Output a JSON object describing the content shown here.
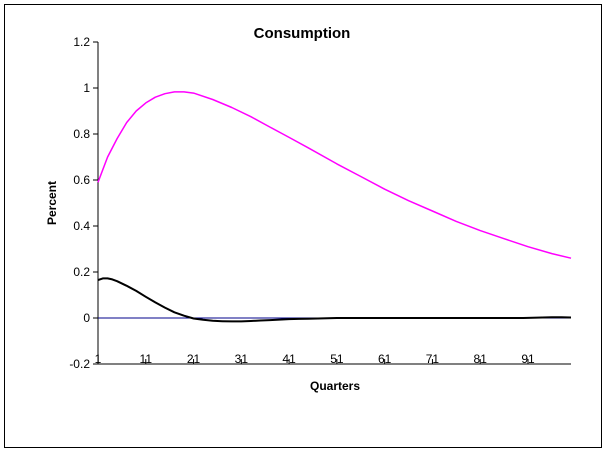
{
  "chart_data": {
    "type": "line",
    "title": "Consumption",
    "xlabel": "Quarters",
    "ylabel": "Percent",
    "xlim": [
      1,
      100
    ],
    "ylim": [
      -0.2,
      1.2
    ],
    "y_ticks": [
      "-0.2",
      "0",
      "0.2",
      "0.4",
      "0.6",
      "0.8",
      "1",
      "1.2"
    ],
    "y_tick_values": [
      -0.2,
      0,
      0.2,
      0.4,
      0.6,
      0.8,
      1,
      1.2
    ],
    "x_ticks": [
      "1",
      "11",
      "21",
      "31",
      "41",
      "51",
      "61",
      "71",
      "81",
      "91"
    ],
    "x_tick_values": [
      1,
      11,
      21,
      31,
      41,
      51,
      61,
      71,
      81,
      91
    ],
    "legend": "none",
    "grid": false,
    "zero_line_color": "#00008B",
    "series": [
      {
        "color": "#FF00FF",
        "x": [
          1,
          3,
          5,
          7,
          9,
          11,
          13,
          15,
          17,
          19,
          21,
          25,
          29,
          33,
          37,
          41,
          45,
          51,
          56,
          61,
          66,
          71,
          76,
          81,
          86,
          91,
          96,
          100
        ],
        "values": [
          0.59,
          0.7,
          0.78,
          0.85,
          0.9,
          0.935,
          0.96,
          0.975,
          0.983,
          0.983,
          0.978,
          0.95,
          0.915,
          0.875,
          0.83,
          0.785,
          0.74,
          0.67,
          0.615,
          0.56,
          0.51,
          0.465,
          0.42,
          0.38,
          0.345,
          0.31,
          0.28,
          0.26
        ]
      },
      {
        "color": "#000000",
        "x": [
          1,
          2,
          3,
          4,
          5,
          7,
          9,
          11,
          13,
          15,
          17,
          19,
          21,
          23,
          25,
          27,
          29,
          31,
          33,
          35,
          37,
          39,
          41,
          43,
          45,
          47,
          49,
          51,
          55,
          60,
          70,
          80,
          90,
          92,
          94,
          96,
          98,
          100
        ],
        "values": [
          0.165,
          0.172,
          0.172,
          0.168,
          0.16,
          0.14,
          0.118,
          0.092,
          0.068,
          0.045,
          0.025,
          0.01,
          -0.002,
          -0.008,
          -0.012,
          -0.014,
          -0.015,
          -0.015,
          -0.013,
          -0.011,
          -0.009,
          -0.007,
          -0.005,
          -0.004,
          -0.003,
          -0.002,
          -0.001,
          0.0,
          0.0,
          0.0,
          0.0,
          0.0,
          0.0,
          0.001,
          0.002,
          0.003,
          0.003,
          0.002
        ]
      }
    ]
  }
}
